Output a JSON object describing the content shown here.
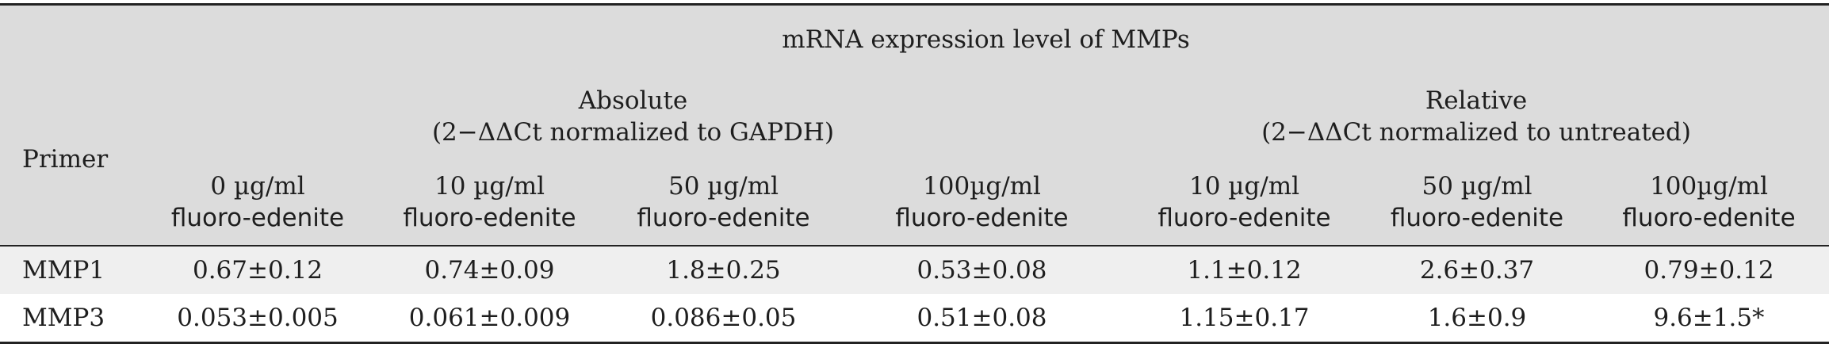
{
  "table": {
    "title": "mRNA expression level of MMPs",
    "primer_header": "Primer",
    "groups": [
      {
        "name": "Absolute",
        "subtitle": "(2−ΔΔCt normalized to GAPDH)"
      },
      {
        "name": "Relative",
        "subtitle": "(2−ΔΔCt normalized to untreated)"
      }
    ],
    "columns": [
      {
        "conc": "0 µg/ml",
        "agent": "fluoro-edenite"
      },
      {
        "conc": "10 µg/ml",
        "agent": "fluoro-edenite"
      },
      {
        "conc": "50 µg/ml",
        "agent": "fluoro-edenite"
      },
      {
        "conc": "100µg/ml",
        "agent": "fluoro-edenite"
      },
      {
        "conc": "10 µg/ml",
        "agent": "fluoro-edenite"
      },
      {
        "conc": "50 µg/ml",
        "agent": "fluoro-edenite"
      },
      {
        "conc": "100µg/ml",
        "agent": "fluoro-edenite"
      }
    ],
    "rows": [
      {
        "primer": "MMP1",
        "values": [
          "0.67±0.12",
          "0.74±0.09",
          "1.8±0.25",
          "0.53±0.08",
          "1.1±0.12",
          "2.6±0.37",
          "0.79±0.12"
        ]
      },
      {
        "primer": "MMP3",
        "values": [
          "0.053±0.005",
          "0.061±0.009",
          "0.086±0.05",
          "0.51±0.08",
          "1.15±0.17",
          "1.6±0.9",
          "9.6±1.5*"
        ]
      }
    ]
  }
}
